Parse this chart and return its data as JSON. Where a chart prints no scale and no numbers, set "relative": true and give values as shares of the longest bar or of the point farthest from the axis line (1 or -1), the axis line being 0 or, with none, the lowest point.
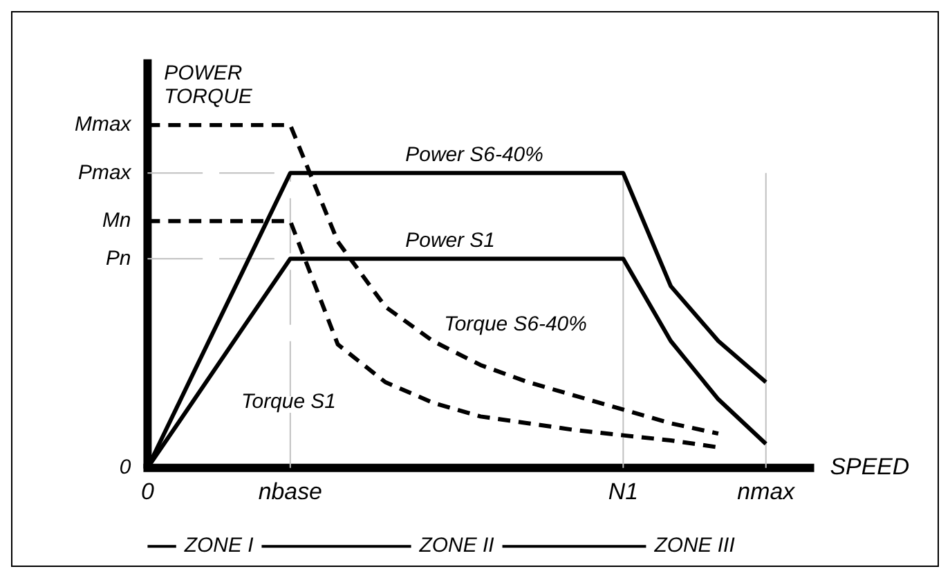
{
  "chart_data": {
    "type": "line",
    "relative": true,
    "xlabel": "SPEED",
    "ylabel": "POWER TORQUE",
    "categories": [
      "0",
      null,
      null,
      "nbase",
      null,
      null,
      null,
      null,
      null,
      null,
      "N1",
      null,
      null,
      "nmax",
      null
    ],
    "series": [
      {
        "name": "Power S6-40%",
        "color": "#000000",
        "line_style": "solid",
        "values": [
          0,
          0.287,
          0.573,
          0.86,
          0.86,
          0.86,
          0.86,
          0.86,
          0.86,
          0.86,
          0.86,
          0.53,
          0.37,
          0.25,
          null
        ]
      },
      {
        "name": "Power S1",
        "color": "#000000",
        "line_style": "solid",
        "values": [
          0,
          0.203,
          0.407,
          0.61,
          0.61,
          0.61,
          0.61,
          0.61,
          0.61,
          0.61,
          0.61,
          0.37,
          0.2,
          0.07,
          null
        ]
      },
      {
        "name": "Torque S6-40%",
        "color": "#000000",
        "line_style": "dashed",
        "values": [
          1,
          1,
          1,
          1,
          0.66,
          0.47,
          0.37,
          0.3,
          0.25,
          0.21,
          0.17,
          0.13,
          0.1,
          null,
          null
        ]
      },
      {
        "name": "Torque S1",
        "color": "#000000",
        "line_style": "dashed",
        "values": [
          0.72,
          0.72,
          0.72,
          0.72,
          0.36,
          0.25,
          0.19,
          0.15,
          0.13,
          0.11,
          0.095,
          0.08,
          0.06,
          null,
          null
        ]
      }
    ],
    "ref_lines": [
      {
        "axis": "x",
        "value": "nbase",
        "color": "#c0c0c0",
        "line_style": "dashed"
      },
      {
        "axis": "x",
        "value": "N1",
        "color": "#c0c0c0",
        "line_style": "solid"
      },
      {
        "axis": "x",
        "value": "nmax",
        "color": "#c0c0c0",
        "line_style": "solid"
      },
      {
        "axis": "y",
        "value": 0.86,
        "label": "Pmax",
        "color": "#c0c0c0",
        "line_style": "dashed"
      },
      {
        "axis": "y",
        "value": 0.61,
        "label": "Pn",
        "color": "#c0c0c0",
        "line_style": "dashed"
      }
    ],
    "annotations": [
      {
        "text": "Mmax",
        "x": "0",
        "y": 1
      },
      {
        "text": "Mn",
        "x": "0",
        "y": 0.72
      },
      {
        "text": "0",
        "x": "0",
        "y": 0
      },
      "ZONE I",
      "ZONE II",
      "ZONE III"
    ],
    "marker": "none",
    "grid": false,
    "legend": false
  }
}
